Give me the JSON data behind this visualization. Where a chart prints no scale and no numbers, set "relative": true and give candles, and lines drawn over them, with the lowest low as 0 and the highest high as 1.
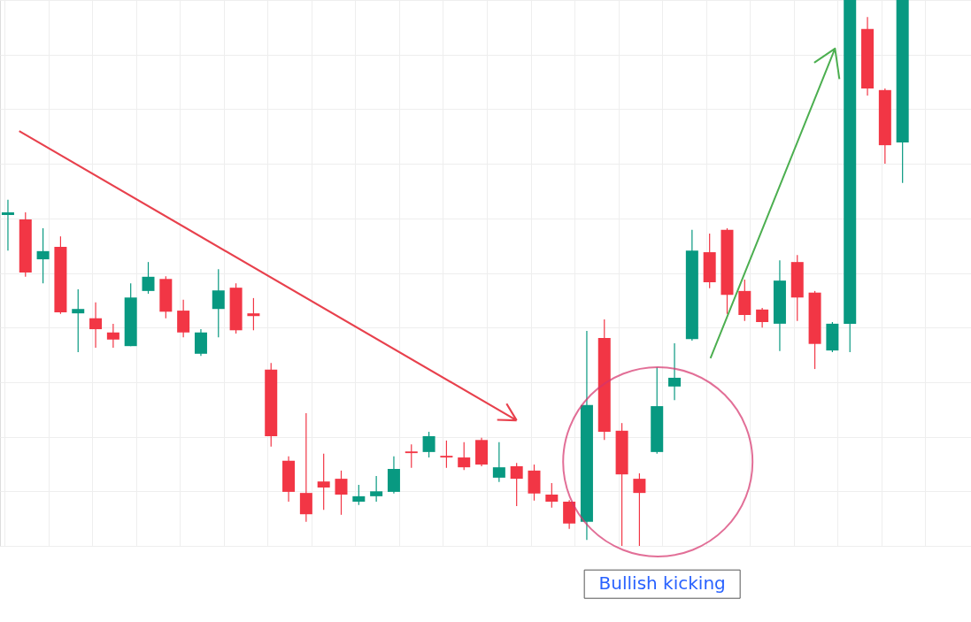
{
  "chart_data": {
    "type": "candlestick",
    "relative": true,
    "grid": true,
    "categories": [
      null,
      null,
      null,
      null,
      null,
      null,
      null,
      null,
      null,
      null,
      null,
      null,
      null,
      null,
      null,
      null,
      null,
      null,
      null,
      null,
      null,
      null,
      null,
      null,
      null,
      null,
      null,
      null,
      null,
      null,
      null,
      null,
      null,
      null,
      null,
      null,
      null,
      null,
      null,
      null,
      null,
      null,
      null,
      null,
      null,
      null,
      null,
      null,
      null,
      null,
      null,
      null
    ],
    "ohlc": [
      [
        0.606,
        0.634,
        0.541,
        0.611
      ],
      [
        0.598,
        0.611,
        0.493,
        0.501
      ],
      [
        0.525,
        0.582,
        0.481,
        0.54
      ],
      [
        0.548,
        0.567,
        0.425,
        0.428
      ],
      [
        0.426,
        0.47,
        0.355,
        0.434
      ],
      [
        0.417,
        0.446,
        0.363,
        0.397
      ],
      [
        0.391,
        0.407,
        0.363,
        0.378
      ],
      [
        0.366,
        0.481,
        0.366,
        0.455
      ],
      [
        0.467,
        0.52,
        0.462,
        0.493
      ],
      [
        0.489,
        0.494,
        0.417,
        0.429
      ],
      [
        0.431,
        0.451,
        0.382,
        0.391
      ],
      [
        0.352,
        0.397,
        0.348,
        0.391
      ],
      [
        0.434,
        0.507,
        0.382,
        0.468
      ],
      [
        0.473,
        0.481,
        0.389,
        0.395
      ],
      [
        0.426,
        0.454,
        0.395,
        0.421
      ],
      [
        0.323,
        0.335,
        0.182,
        0.201
      ],
      [
        0.156,
        0.164,
        0.081,
        0.099
      ],
      [
        0.097,
        0.243,
        0.044,
        0.058
      ],
      [
        0.118,
        0.169,
        0.066,
        0.107
      ],
      [
        0.123,
        0.138,
        0.057,
        0.094
      ],
      [
        0.081,
        0.112,
        0.075,
        0.091
      ],
      [
        0.091,
        0.128,
        0.081,
        0.1
      ],
      [
        0.099,
        0.164,
        0.096,
        0.141
      ],
      [
        0.173,
        0.186,
        0.143,
        0.17
      ],
      [
        0.172,
        0.209,
        0.162,
        0.201
      ],
      [
        0.165,
        0.193,
        0.143,
        0.162
      ],
      [
        0.162,
        0.19,
        0.139,
        0.144
      ],
      [
        0.194,
        0.198,
        0.146,
        0.149
      ],
      [
        0.125,
        0.19,
        0.117,
        0.144
      ],
      [
        0.146,
        0.152,
        0.073,
        0.123
      ],
      [
        0.138,
        0.149,
        0.083,
        0.096
      ],
      [
        0.094,
        0.115,
        0.07,
        0.081
      ],
      [
        0.081,
        0.084,
        0.031,
        0.041
      ],
      [
        0.044,
        0.394,
        0.011,
        0.258
      ],
      [
        0.381,
        0.415,
        0.194,
        0.209
      ],
      [
        0.211,
        0.225,
        0.0,
        0.131
      ],
      [
        0.123,
        0.133,
        0.0,
        0.097
      ],
      [
        0.172,
        0.327,
        0.169,
        0.256
      ],
      [
        0.292,
        0.371,
        0.267,
        0.308
      ],
      [
        0.379,
        0.579,
        0.376,
        0.541
      ],
      [
        0.538,
        0.572,
        0.472,
        0.483
      ],
      [
        0.579,
        0.582,
        0.425,
        0.46
      ],
      [
        0.467,
        0.488,
        0.412,
        0.423
      ],
      [
        0.433,
        0.436,
        0.4,
        0.41
      ],
      [
        0.407,
        0.523,
        0.357,
        0.486
      ],
      [
        0.52,
        0.533,
        0.412,
        0.455
      ],
      [
        0.464,
        0.467,
        0.324,
        0.37
      ],
      [
        0.358,
        0.41,
        0.355,
        0.407
      ],
      [
        0.407,
        1.0,
        0.355,
        1.0
      ],
      [
        0.947,
        0.969,
        0.825,
        0.838
      ],
      [
        0.835,
        0.838,
        0.7,
        0.734
      ],
      [
        0.739,
        1.0,
        0.665,
        1.0
      ]
    ],
    "colors": [
      "#089981",
      "#f23645",
      "#089981",
      "#f23645",
      "#089981",
      "#f23645",
      "#f23645",
      "#089981",
      "#089981",
      "#f23645",
      "#f23645",
      "#089981",
      "#089981",
      "#f23645",
      "#f23645",
      "#f23645",
      "#f23645",
      "#f23645",
      "#f23645",
      "#f23645",
      "#089981",
      "#089981",
      "#089981",
      "#f23645",
      "#089981",
      "#f23645",
      "#f23645",
      "#f23645",
      "#089981",
      "#f23645",
      "#f23645",
      "#f23645",
      "#f23645",
      "#089981",
      "#f23645",
      "#f23645",
      "#f23645",
      "#089981",
      "#089981",
      "#089981",
      "#f23645",
      "#f23645",
      "#f23645",
      "#f23645",
      "#089981",
      "#f23645",
      "#f23645",
      "#089981",
      "#089981",
      "#f23645",
      "#f23645",
      "#089981"
    ],
    "annotations": [
      "Bullish kicking"
    ]
  }
}
